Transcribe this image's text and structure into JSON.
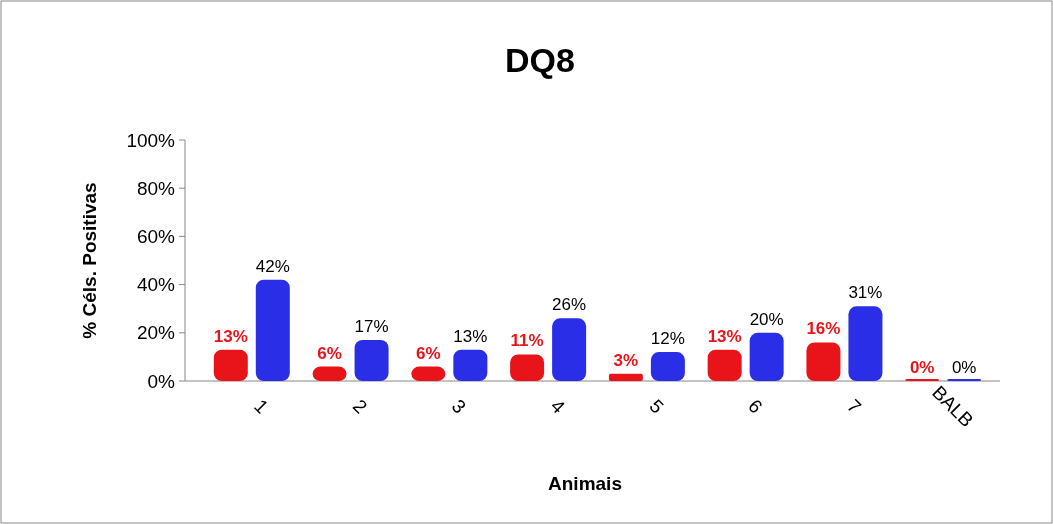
{
  "chart_data": {
    "type": "bar",
    "title": "DQ8",
    "xlabel": "Animais",
    "ylabel": "% Céls. Positivas",
    "categories": [
      "1",
      "2",
      "3",
      "4",
      "5",
      "6",
      "7",
      "BALB"
    ],
    "series": [
      {
        "color": "#e8141a",
        "values": [
          13,
          6,
          6,
          11,
          3,
          13,
          16,
          0
        ],
        "value_labels": [
          "13%",
          "6%",
          "6%",
          "11%",
          "3%",
          "13%",
          "16%",
          "0%"
        ]
      },
      {
        "color": "#2a2ee6",
        "values": [
          42,
          17,
          13,
          26,
          12,
          20,
          31,
          0
        ],
        "value_labels": [
          "42%",
          "17%",
          "13%",
          "26%",
          "12%",
          "20%",
          "31%",
          "0%"
        ]
      }
    ],
    "ylim": [
      0,
      100
    ],
    "yticks": [
      {
        "value": 0,
        "label": "0%"
      },
      {
        "value": 20,
        "label": "20%"
      },
      {
        "value": 40,
        "label": "40%"
      },
      {
        "value": 60,
        "label": "60%"
      },
      {
        "value": 80,
        "label": "80%"
      },
      {
        "value": 100,
        "label": "100%"
      }
    ],
    "grid": false
  }
}
